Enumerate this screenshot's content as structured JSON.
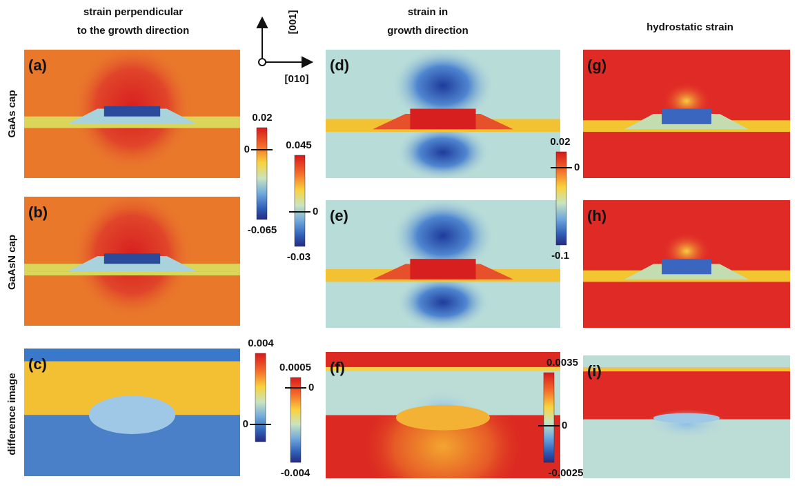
{
  "columns": [
    {
      "lines": [
        "strain perpendicular",
        "to the growth direction"
      ]
    },
    {
      "lines": [
        "strain in",
        "growth direction"
      ]
    },
    {
      "lines": [
        "hydrostatic strain"
      ]
    }
  ],
  "rows": [
    "GaAs cap",
    "GaAsN cap",
    "difference image"
  ],
  "axes": {
    "vertical": "[001]",
    "horizontal": "[010]"
  },
  "panels": [
    "(a)",
    "(b)",
    "(c)",
    "(d)",
    "(e)",
    "(f)",
    "(g)",
    "(h)",
    "(i)"
  ],
  "colorbars": [
    {
      "top": "0.02",
      "zero": "0",
      "bottom": "-0.065"
    },
    {
      "top": "0.045",
      "zero": "0",
      "bottom": "-0.03"
    },
    {
      "top": "0.02",
      "zero": "0",
      "bottom": "-0.1"
    },
    {
      "top": "0.004",
      "zero": "0"
    },
    {
      "top": "0.0005",
      "zero": "0",
      "bottom": "-0.004"
    },
    {
      "top": "0.0035",
      "zero": "0",
      "bottom": "-0.0025"
    }
  ]
}
